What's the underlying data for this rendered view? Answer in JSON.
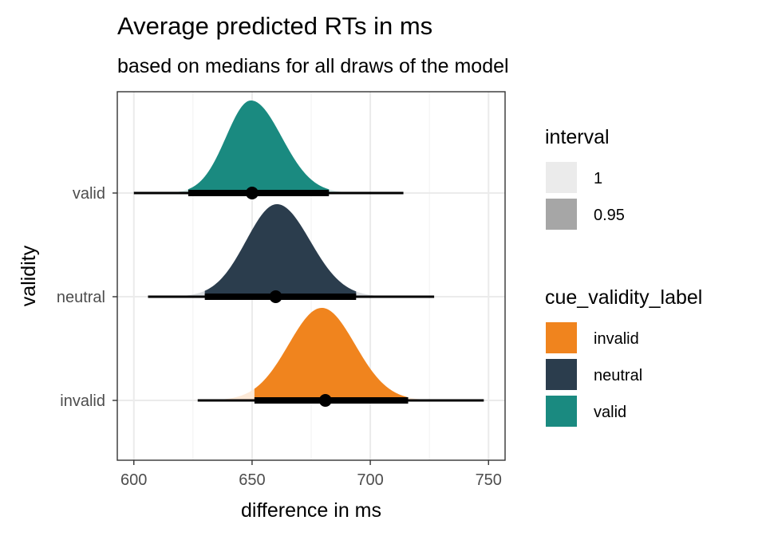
{
  "chart_data": {
    "type": "halfeye",
    "title": "Average predicted RTs in ms",
    "subtitle": "based on medians for all draws of the model",
    "xlabel": "difference in ms",
    "ylabel": "validity",
    "xlim": [
      593,
      757
    ],
    "xticks": [
      600,
      650,
      700,
      750
    ],
    "categories": [
      "valid",
      "neutral",
      "invalid"
    ],
    "grid": true,
    "legend_position": "right",
    "series": [
      {
        "name": "valid",
        "color": "#1A8A80",
        "median": 650,
        "mode": 649.5,
        "interval_95": [
          623,
          682.5
        ],
        "interval_1": [
          600,
          714
        ],
        "sd_left": 10.5,
        "sd_right": 13
      },
      {
        "name": "neutral",
        "color": "#2B3D4D",
        "median": 660,
        "mode": 660.5,
        "interval_95": [
          630,
          694
        ],
        "interval_1": [
          606,
          727
        ],
        "sd_left": 13,
        "sd_right": 14
      },
      {
        "name": "invalid",
        "color": "#F0841E",
        "median": 681,
        "mode": 679.5,
        "interval_95": [
          651,
          716
        ],
        "interval_1": [
          627,
          748
        ],
        "sd_left": 14,
        "sd_right": 14
      }
    ],
    "legends": [
      {
        "title": "interval",
        "items": [
          {
            "label": "1",
            "color": "#EBEBEB"
          },
          {
            "label": "0.95",
            "color": "#A6A6A6"
          }
        ]
      },
      {
        "title": "cue_validity_label",
        "items": [
          {
            "label": "invalid",
            "color": "#F0841E"
          },
          {
            "label": "neutral",
            "color": "#2B3D4D"
          },
          {
            "label": "valid",
            "color": "#1A8A80"
          }
        ]
      }
    ]
  }
}
